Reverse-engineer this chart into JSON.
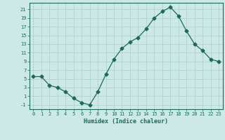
{
  "x": [
    0,
    1,
    2,
    3,
    4,
    5,
    6,
    7,
    8,
    9,
    10,
    11,
    12,
    13,
    14,
    15,
    16,
    17,
    18,
    19,
    20,
    21,
    22,
    23
  ],
  "y": [
    5.5,
    5.5,
    3.5,
    3.0,
    2.0,
    0.5,
    -0.5,
    -1.0,
    2.0,
    6.0,
    9.5,
    12.0,
    13.5,
    14.5,
    16.5,
    19.0,
    20.5,
    21.5,
    19.5,
    16.0,
    13.0,
    11.5,
    9.5,
    9.0
  ],
  "line_color": "#1a6b5a",
  "marker": "D",
  "marker_size": 2.5,
  "bg_color": "#cce9e5",
  "grid_color": "#aacfca",
  "tick_color": "#1a6b5a",
  "xlabel": "Humidex (Indice chaleur)",
  "ylabel_ticks": [
    -1,
    1,
    3,
    5,
    7,
    9,
    11,
    13,
    15,
    17,
    19,
    21
  ],
  "xticks": [
    0,
    1,
    2,
    3,
    4,
    5,
    6,
    7,
    8,
    9,
    10,
    11,
    12,
    13,
    14,
    15,
    16,
    17,
    18,
    19,
    20,
    21,
    22,
    23
  ],
  "ylim": [
    -2,
    22.5
  ],
  "xlim": [
    -0.5,
    23.5
  ]
}
